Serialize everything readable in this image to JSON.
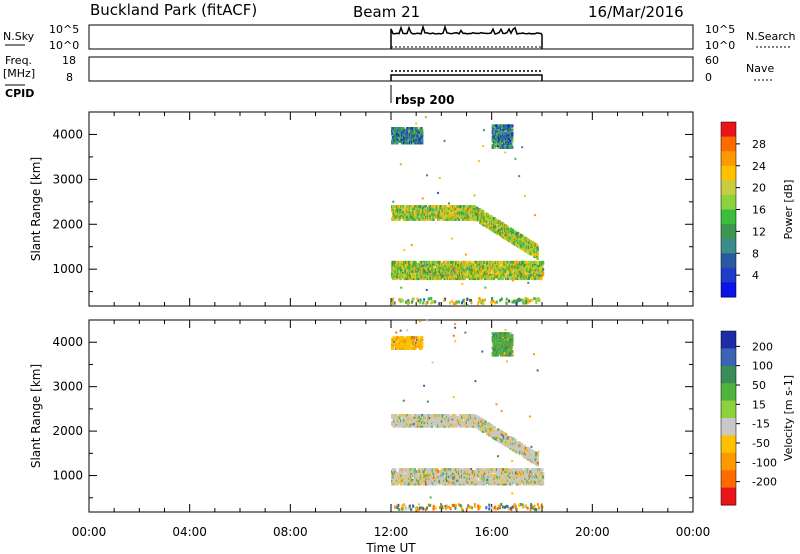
{
  "header": {
    "site": "Buckland Park (fitACF)",
    "beam": "Beam 21",
    "date": "16/Mar/2016"
  },
  "top_panels": {
    "nsky_label": "N.Sky",
    "nsky_left_ticks": [
      "10^5",
      "10^0"
    ],
    "nsearch_label": "N.Search",
    "nsearch_right_ticks": [
      "10^5",
      "10^0"
    ],
    "freq_label_1": "Freq.",
    "freq_label_2": "[MHz]",
    "freq_ticks": [
      "18",
      "8"
    ],
    "nave_label": "Nave",
    "nave_ticks": [
      "60",
      "0"
    ],
    "cpid_label": "CPID",
    "cpid_value": "rbsp 200"
  },
  "chart_data": [
    {
      "type": "heatmap",
      "panel": "power",
      "ylabel": "Slant Range [km]",
      "y_ticks": [
        1000,
        2000,
        3000,
        4000
      ],
      "ylim": [
        180,
        4500
      ],
      "x_ticks": [
        "00:00",
        "04:00",
        "08:00",
        "12:00",
        "16:00",
        "20:00",
        "00:00"
      ],
      "xlim_hours": [
        0,
        24
      ],
      "data_window_hours": [
        12,
        18
      ],
      "colorbar": {
        "label": "Power [dB]",
        "tick_labels": [
          "28",
          "24",
          "20",
          "16",
          "12",
          "8",
          "4"
        ],
        "colors": [
          "#e8161a",
          "#ff6a00",
          "#ff9900",
          "#ffc000",
          "#c8cc40",
          "#8cd23c",
          "#3cbe3c",
          "#3c9650",
          "#3c8c8c",
          "#285aa0",
          "#1e3cc8",
          "#0a14e6"
        ]
      },
      "echo_bands": [
        {
          "t_start": 12.0,
          "t_end": 18.0,
          "range_start": 780,
          "range_end": 1150,
          "value": 18
        },
        {
          "t_start": 12.0,
          "t_end": 17.8,
          "range_start": 2100,
          "range_end": 2400,
          "value": 18
        },
        {
          "t_start": 12.0,
          "t_end": 13.2,
          "range_start": 3800,
          "range_end": 4150,
          "value": 10
        },
        {
          "t_start": 16.0,
          "t_end": 16.8,
          "range_start": 3700,
          "range_end": 4200,
          "value": 10
        }
      ]
    },
    {
      "type": "heatmap",
      "panel": "velocity",
      "ylabel": "Slant Range [km]",
      "y_ticks": [
        1000,
        2000,
        3000,
        4000
      ],
      "ylim": [
        180,
        4500
      ],
      "x_ticks": [
        "00:00",
        "04:00",
        "08:00",
        "12:00",
        "16:00",
        "20:00",
        "00:00"
      ],
      "xlim_hours": [
        0,
        24
      ],
      "xlabel": "Time UT",
      "data_window_hours": [
        12,
        18
      ],
      "colorbar": {
        "label": "Velocity [m s-1]",
        "tick_labels": [
          "200",
          "100",
          "50",
          "15",
          "-15",
          "-50",
          "-100",
          "-200"
        ],
        "colors": [
          "#1e2ca8",
          "#3c64b4",
          "#3c8c5a",
          "#50b43c",
          "#8cd23c",
          "#c8c8c8",
          "#ffc000",
          "#ff9900",
          "#ff6a00",
          "#e8161a"
        ]
      },
      "echo_bands": [
        {
          "t_start": 12.0,
          "t_end": 18.0,
          "range_start": 800,
          "range_end": 1150,
          "value": 0
        },
        {
          "t_start": 12.0,
          "t_end": 17.8,
          "range_start": 2100,
          "range_end": 2350,
          "value": 0
        },
        {
          "t_start": 12.0,
          "t_end": 13.2,
          "range_start": 3850,
          "range_end": 4100,
          "value": -40
        },
        {
          "t_start": 16.0,
          "t_end": 16.8,
          "range_start": 3700,
          "range_end": 4200,
          "value": 40
        }
      ]
    }
  ]
}
